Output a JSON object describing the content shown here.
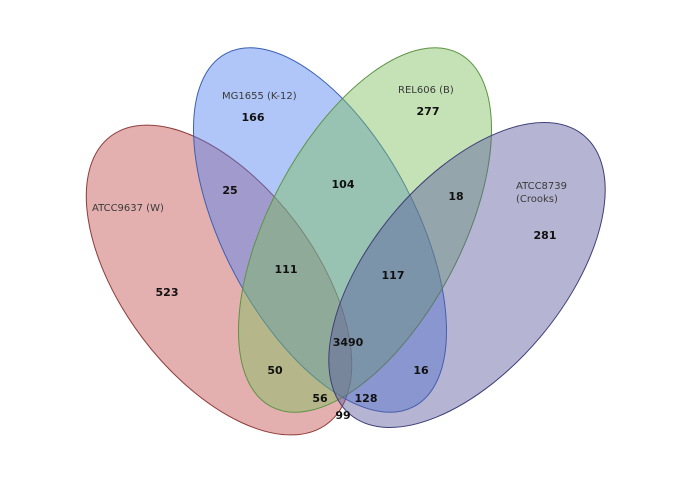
{
  "sets": [
    {
      "id": "w",
      "label": "ATCC9637 (W)",
      "color": "#C0504D"
    },
    {
      "id": "k12",
      "label": "MG1655 (K-12)",
      "color": "#4F81F0"
    },
    {
      "id": "b",
      "label": "REL606 (B)",
      "color": "#7DBF5E"
    },
    {
      "id": "crooks",
      "label_line1": "ATCC8739",
      "label_line2": "(Crooks)",
      "color": "#5B5B9E"
    }
  ],
  "counts": {
    "w_only": "523",
    "k12_only": "166",
    "b_only": "277",
    "crooks_only": "281",
    "w_k12": "25",
    "k12_b": "104",
    "b_crooks": "18",
    "w_k12_b": "111",
    "k12_b_crooks": "117",
    "all": "3490",
    "w_b": "50",
    "k12_crooks": "16",
    "w_b_crooks": "56",
    "w_k12_crooks": "128",
    "w_crooks": "99"
  }
}
